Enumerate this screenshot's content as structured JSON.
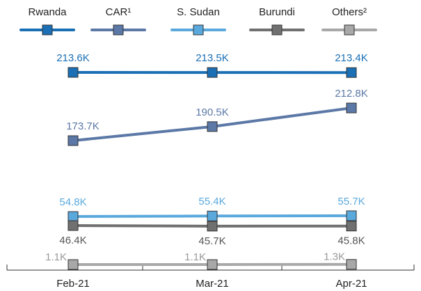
{
  "chart_data": {
    "type": "line",
    "categories": [
      "Feb-21",
      "Mar-21",
      "Apr-21"
    ],
    "series": [
      {
        "name": "Rwanda",
        "color": "#1a6fb5",
        "values": [
          213.6,
          213.5,
          213.4
        ],
        "value_labels": [
          "213.6K",
          "213.5K",
          "213.4K"
        ]
      },
      {
        "name": "CAR¹",
        "color": "#5b78a6",
        "values": [
          173.7,
          190.5,
          212.8
        ],
        "value_labels": [
          "173.7K",
          "190.5K",
          "212.8K"
        ]
      },
      {
        "name": "S. Sudan",
        "color": "#5aa9dd",
        "values": [
          54.8,
          55.4,
          55.7
        ],
        "value_labels": [
          "54.8K",
          "55.4K",
          "55.7K"
        ]
      },
      {
        "name": "Burundi",
        "color": "#707070",
        "values": [
          46.4,
          45.7,
          45.8
        ],
        "value_labels": [
          "46.4K",
          "45.7K",
          "45.8K"
        ]
      },
      {
        "name": "Others²",
        "color": "#a8a8a8",
        "values": [
          1.1,
          1.1,
          1.3
        ],
        "value_labels": [
          "1.1K",
          "1.1K",
          "1.3K"
        ]
      }
    ],
    "legend": "top"
  }
}
